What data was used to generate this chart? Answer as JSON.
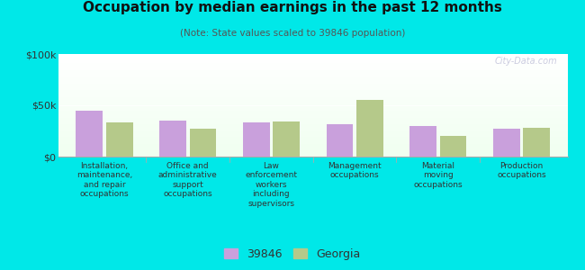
{
  "title": "Occupation by median earnings in the past 12 months",
  "subtitle": "(Note: State values scaled to 39846 population)",
  "categories": [
    "Installation,\nmaintenance,\nand repair\noccupations",
    "Office and\nadministrative\nsupport\noccupations",
    "Law\nenforcement\nworkers\nincluding\nsupervisors",
    "Management\noccupations",
    "Material\nmoving\noccupations",
    "Production\noccupations"
  ],
  "values_39846": [
    45000,
    35000,
    33000,
    32000,
    30000,
    27000
  ],
  "values_georgia": [
    33000,
    27000,
    34000,
    55000,
    20000,
    28000
  ],
  "color_39846": "#c9a0dc",
  "color_georgia": "#b5c98a",
  "ylim": [
    0,
    100000
  ],
  "yticks": [
    0,
    50000,
    100000
  ],
  "ytick_labels": [
    "$0",
    "$50k",
    "$100k"
  ],
  "outer_bg": "#00e8e8",
  "watermark": "City-Data.com",
  "legend_labels": [
    "39846",
    "Georgia"
  ]
}
